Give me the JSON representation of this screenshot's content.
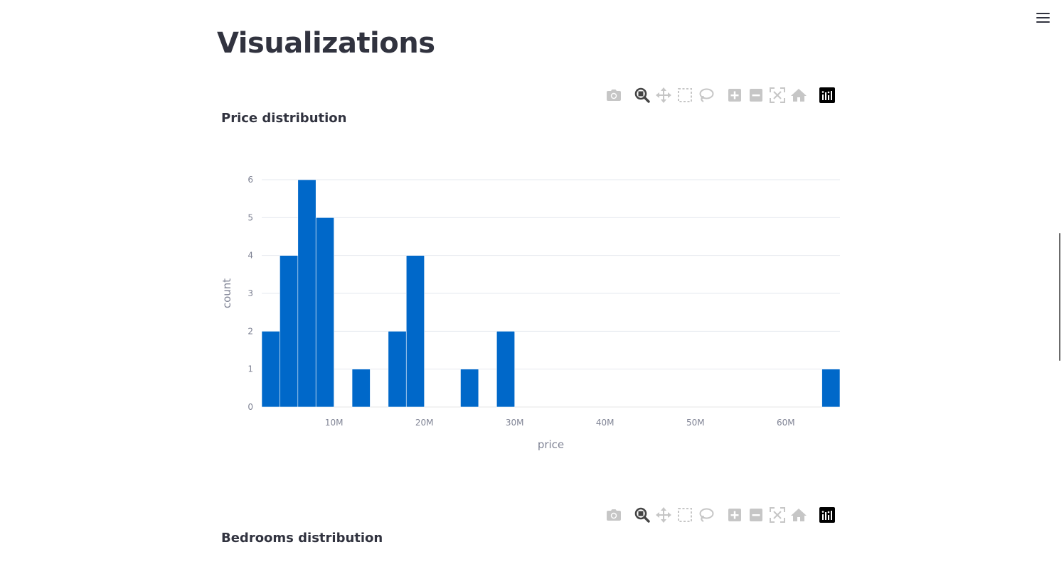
{
  "page": {
    "title": "Visualizations"
  },
  "app_menu": {
    "icon": "hamburger-menu-icon"
  },
  "modebar": {
    "buttons": [
      {
        "icon": "camera-icon",
        "label": "Download plot as a png"
      },
      {
        "icon": "zoom-icon",
        "label": "Zoom",
        "active": true
      },
      {
        "icon": "pan-icon",
        "label": "Pan"
      },
      {
        "icon": "box-select-icon",
        "label": "Box Select"
      },
      {
        "icon": "lasso-select-icon",
        "label": "Lasso Select"
      },
      {
        "icon": "zoom-in-icon",
        "label": "Zoom in"
      },
      {
        "icon": "zoom-out-icon",
        "label": "Zoom out"
      },
      {
        "icon": "autoscale-icon",
        "label": "Autoscale"
      },
      {
        "icon": "reset-axes-icon",
        "label": "Reset axes"
      },
      {
        "icon": "plotly-logo-icon",
        "label": "Produced with Plotly"
      }
    ],
    "inactive_color": "#c6c6c6",
    "active_color": "#444444"
  },
  "charts": [
    {
      "title": "Price distribution"
    },
    {
      "title": "Bedrooms distribution"
    }
  ],
  "chart_data": [
    {
      "type": "bar",
      "title": "Price distribution",
      "xlabel": "price",
      "ylabel": "count",
      "bar_color": "#0068c9",
      "grid": true,
      "xlim": [
        2000000,
        66000000
      ],
      "ylim": [
        0,
        6
      ],
      "bin_width": 2000000,
      "bins": [
        {
          "x0": 2000000,
          "count": 2
        },
        {
          "x0": 4000000,
          "count": 4
        },
        {
          "x0": 6000000,
          "count": 6
        },
        {
          "x0": 8000000,
          "count": 5
        },
        {
          "x0": 12000000,
          "count": 1
        },
        {
          "x0": 16000000,
          "count": 2
        },
        {
          "x0": 18000000,
          "count": 4
        },
        {
          "x0": 24000000,
          "count": 1
        },
        {
          "x0": 28000000,
          "count": 2
        },
        {
          "x0": 64000000,
          "count": 1
        }
      ],
      "x_ticks": [
        {
          "value": 10000000,
          "label": "10M"
        },
        {
          "value": 20000000,
          "label": "20M"
        },
        {
          "value": 30000000,
          "label": "30M"
        },
        {
          "value": 40000000,
          "label": "40M"
        },
        {
          "value": 50000000,
          "label": "50M"
        },
        {
          "value": 60000000,
          "label": "60M"
        }
      ],
      "y_ticks": [
        0,
        1,
        2,
        3,
        4,
        5,
        6
      ]
    }
  ]
}
